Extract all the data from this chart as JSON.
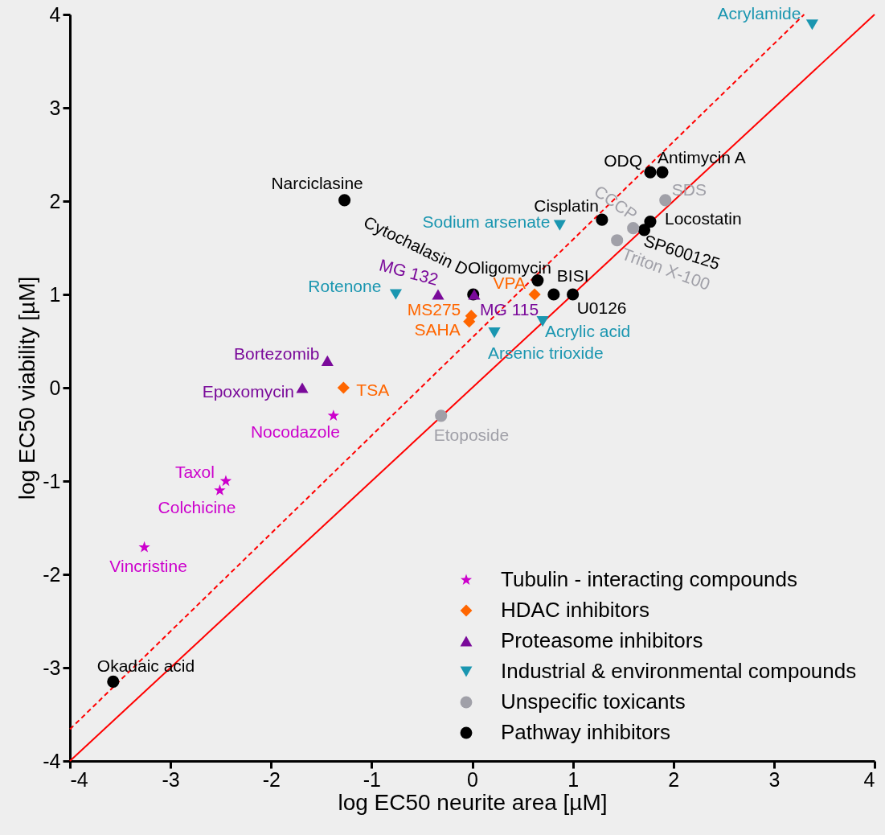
{
  "chart_data": {
    "type": "scatter",
    "xlabel": "log EC50 neurite area [µM]",
    "ylabel": "log EC50 viability [µM]",
    "xlim": [
      -4,
      4
    ],
    "ylim": [
      -4,
      4
    ],
    "xticks": [
      -4,
      -3,
      -2,
      -1,
      0,
      1,
      2,
      3,
      4
    ],
    "yticks": [
      -4,
      -3,
      -2,
      -1,
      0,
      1,
      2,
      3,
      4
    ],
    "grid": false,
    "legend": "bottom right",
    "series": [
      {
        "type": "line",
        "color": "#ff0000",
        "line_style": "solid",
        "x": [
          -4,
          4
        ],
        "values": [
          -4,
          4
        ]
      },
      {
        "type": "line",
        "color": "#ff0000",
        "line_style": "dashed",
        "x": [
          -4,
          3.3
        ],
        "values": [
          -3.66,
          4
        ]
      },
      {
        "name": "Tubulin - interacting compounds",
        "color": "#cc00cc",
        "marker": "star",
        "x": [
          -1.38,
          -2.45,
          -2.51,
          -3.26
        ],
        "values": [
          -0.3,
          -1.0,
          -1.1,
          -1.71
        ]
      },
      {
        "name": "HDAC inhibitors",
        "color": "#ff6600",
        "marker": "diamond",
        "x": [
          -1.28,
          0.62,
          -0.01,
          -0.03
        ],
        "values": [
          0,
          1.0,
          0.77,
          0.71
        ]
      },
      {
        "name": "Proteasome inhibitors",
        "color": "#7a0a9a",
        "marker": "triangle",
        "x": [
          -1.44,
          -1.69,
          -0.34,
          0.02
        ],
        "values": [
          0.29,
          0,
          1.0,
          1.0
        ]
      },
      {
        "name": "Industrial & environmental compounds",
        "color": "#1a96b0",
        "marker": "triangle-down",
        "x": [
          3.38,
          0.87,
          -0.76,
          0.7,
          0.22
        ],
        "values": [
          3.89,
          1.74,
          1.0,
          0.71,
          0.59
        ]
      },
      {
        "name": "Unspecific toxicants",
        "color": "#a0a0a8",
        "marker": "circle",
        "x": [
          1.92,
          1.6,
          1.44,
          -0.31
        ],
        "values": [
          2.01,
          1.71,
          1.58,
          -0.3
        ]
      },
      {
        "name": "Pathway inhibitors",
        "color": "#000000",
        "marker": "circle",
        "x": [
          -1.27,
          1.77,
          1.89,
          1.29,
          1.77,
          1.71,
          0.65,
          0.01,
          0.81,
          1.0,
          -3.57
        ],
        "values": [
          2.01,
          2.31,
          2.31,
          1.8,
          1.78,
          1.69,
          1.15,
          1.0,
          1.0,
          1.0,
          -3.15
        ]
      }
    ],
    "annotations": [
      {
        "text": "Nocodazole",
        "x": -1.38,
        "y": -0.3
      },
      {
        "text": "Taxol",
        "x": -2.45,
        "y": -1.0
      },
      {
        "text": "Colchicine",
        "x": -2.51,
        "y": -1.1
      },
      {
        "text": "Vincristine",
        "x": -3.26,
        "y": -1.71
      },
      {
        "text": "TSA",
        "x": -1.28,
        "y": 0
      },
      {
        "text": "VPA",
        "x": 0.62,
        "y": 1.0
      },
      {
        "text": "MS275",
        "x": -0.01,
        "y": 0.77
      },
      {
        "text": "SAHA",
        "x": -0.03,
        "y": 0.71
      },
      {
        "text": "Bortezomib",
        "x": -1.44,
        "y": 0.29
      },
      {
        "text": "Epoxomycin",
        "x": -1.69,
        "y": 0
      },
      {
        "text": "MG 132",
        "x": -0.34,
        "y": 1.0
      },
      {
        "text": "MG 115",
        "x": 0.02,
        "y": 1.0
      },
      {
        "text": "Acrylamide",
        "x": 3.38,
        "y": 3.89
      },
      {
        "text": "Sodium arsenate",
        "x": 0.87,
        "y": 1.74
      },
      {
        "text": "Rotenone",
        "x": -0.76,
        "y": 1.0
      },
      {
        "text": "Acrylic acid",
        "x": 0.7,
        "y": 0.71
      },
      {
        "text": "Arsenic trioxide",
        "x": 0.22,
        "y": 0.59
      },
      {
        "text": "SDS",
        "x": 1.92,
        "y": 2.01
      },
      {
        "text": "CCCP",
        "x": 1.6,
        "y": 1.71
      },
      {
        "text": "Triton X-100",
        "x": 1.44,
        "y": 1.58
      },
      {
        "text": "Etoposide",
        "x": -0.31,
        "y": -0.3
      },
      {
        "text": "Narciclasine",
        "x": -1.27,
        "y": 2.01
      },
      {
        "text": "ODQ",
        "x": 1.77,
        "y": 2.31
      },
      {
        "text": "Antimycin A",
        "x": 1.89,
        "y": 2.31
      },
      {
        "text": "Cisplatin",
        "x": 1.29,
        "y": 1.8
      },
      {
        "text": "Locostatin",
        "x": 1.77,
        "y": 1.78
      },
      {
        "text": "SP600125",
        "x": 1.71,
        "y": 1.69
      },
      {
        "text": "Oligomycin",
        "x": 0.65,
        "y": 1.15
      },
      {
        "text": "Cytochalasin D",
        "x": 0.01,
        "y": 1.0
      },
      {
        "text": "BISI",
        "x": 0.81,
        "y": 1.0
      },
      {
        "text": "U0126",
        "x": 1.0,
        "y": 1.0
      },
      {
        "text": "Okadaic acid",
        "x": -3.57,
        "y": -3.15
      }
    ]
  }
}
